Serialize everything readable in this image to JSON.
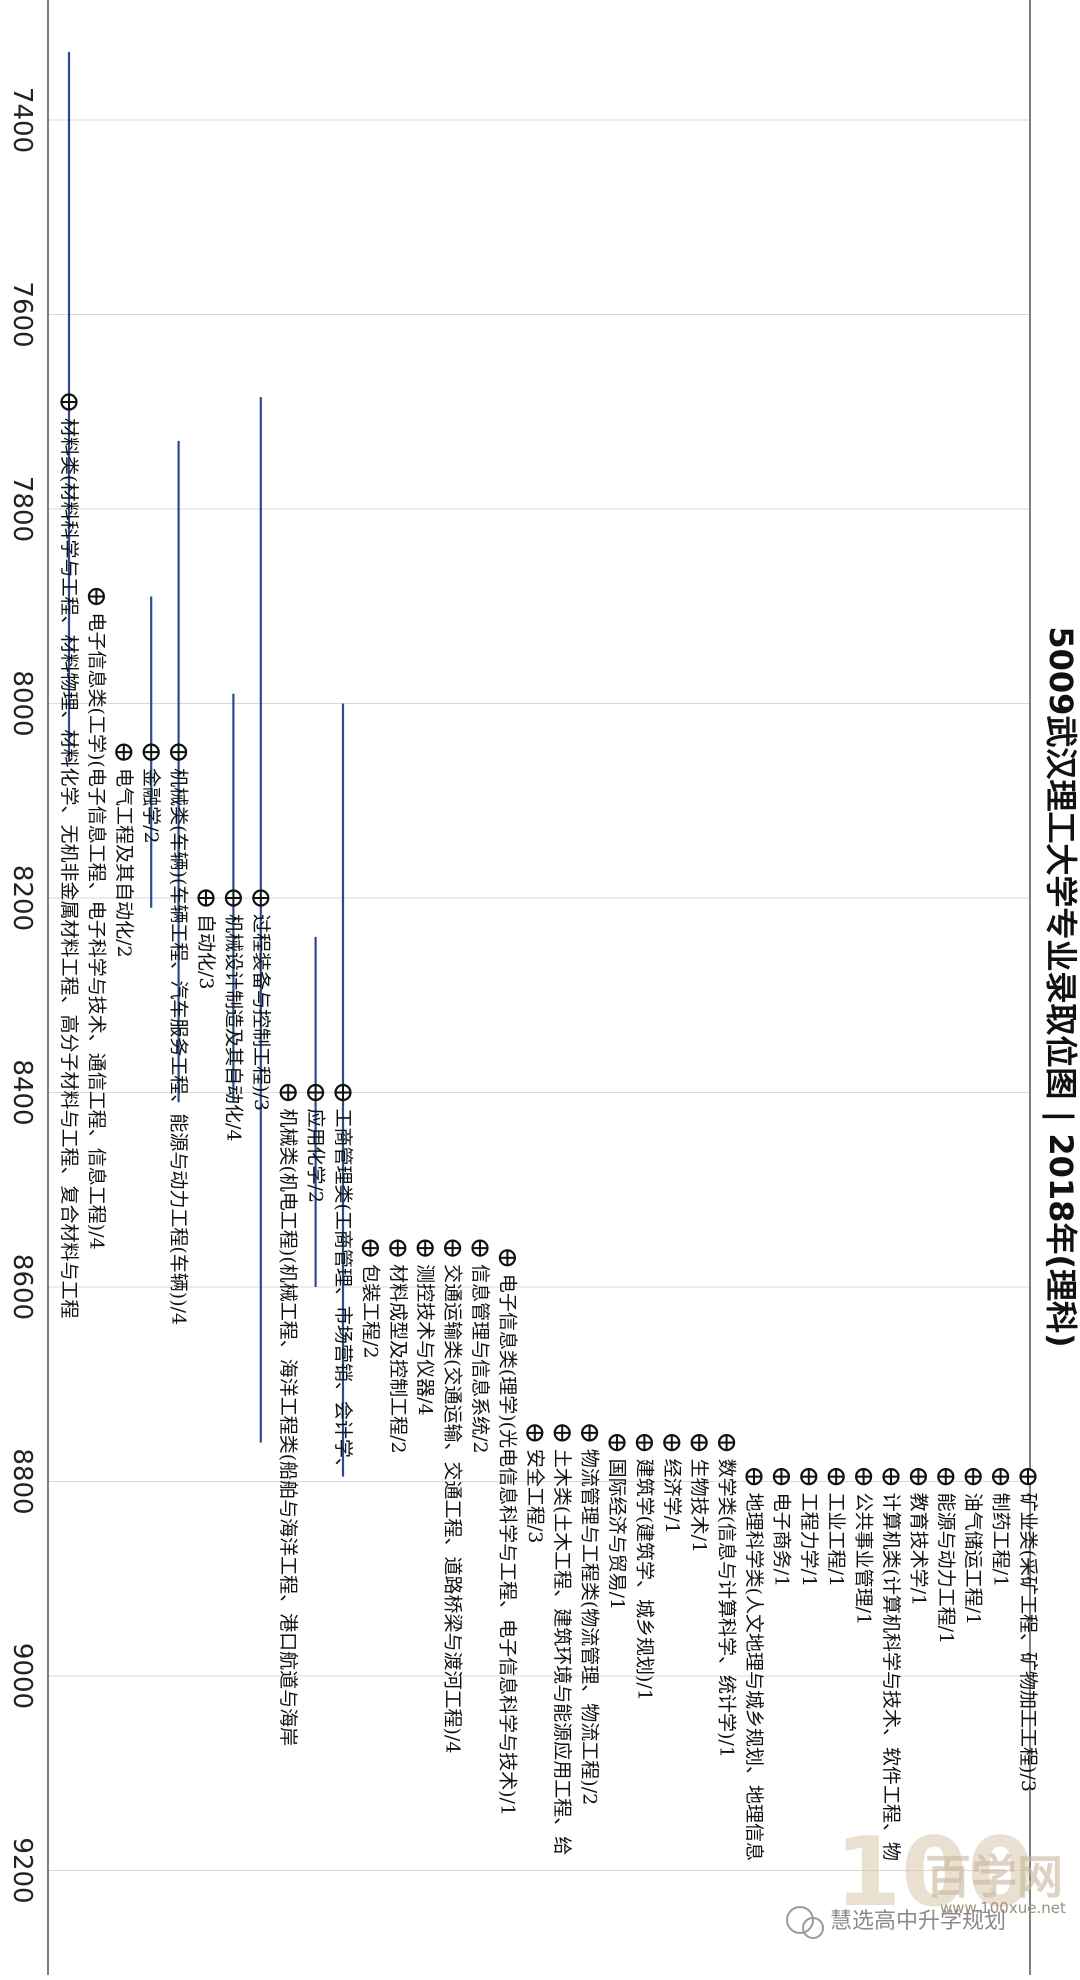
{
  "chart_data": {
    "type": "scatter",
    "title": "5009武汉理工大学专业录取位图 | 2018年(理科)",
    "ylim": [
      7240,
      9300
    ],
    "ticks": [
      7400,
      7600,
      7800,
      8000,
      8200,
      8400,
      8600,
      8800,
      9000,
      9200
    ],
    "grid": true,
    "series": [
      {
        "x": 1,
        "rank": 7690,
        "range": [
          7330,
          8060
        ],
        "label": "材料类(材料科学与工程、材料物理、材料化学、无机非金属材料工程、高分子材料与工程、复合材料与工程"
      },
      {
        "x": 2,
        "rank": 7890,
        "range": null,
        "label": "电子信息类(工学)(电子信息工程、电子科学与技术、通信工程、信息工程)/4"
      },
      {
        "x": 3,
        "rank": 8050,
        "range": null,
        "label": "电气工程及其自动化/2"
      },
      {
        "x": 4,
        "rank": 8050,
        "range": [
          7890,
          8210
        ],
        "label": "金融学/2"
      },
      {
        "x": 5,
        "rank": 8050,
        "range": [
          7730,
          8410
        ],
        "label": "机械类(车辆)(车辆工程、汽车服务工程、能源与动力工程(车辆))/4"
      },
      {
        "x": 6,
        "rank": 8200,
        "range": null,
        "label": "自动化/3"
      },
      {
        "x": 7,
        "rank": 8200,
        "range": [
          7990,
          8410
        ],
        "label": "机械设计制造及其自动化/4"
      },
      {
        "x": 8,
        "rank": 8200,
        "range": [
          7685,
          8760
        ],
        "label": "过程装备与控制工程)/3"
      },
      {
        "x": 9,
        "rank": 8400,
        "range": null,
        "label": "机械类(机电工程)(机械工程、海洋工程类(船舶与海洋工程、港口航道与海岸"
      },
      {
        "x": 10,
        "rank": 8400,
        "range": [
          8240,
          8600
        ],
        "label": "应用化学/2"
      },
      {
        "x": 11,
        "rank": 8400,
        "range": [
          8000,
          8795
        ],
        "label": "工商管理类(工商管理、市场营销、会计学、"
      },
      {
        "x": 12,
        "rank": 8560,
        "range": null,
        "label": "包装工程/2"
      },
      {
        "x": 13,
        "rank": 8560,
        "range": null,
        "label": "材料成型及控制工程/2"
      },
      {
        "x": 14,
        "rank": 8560,
        "range": null,
        "label": "测控技术与仪器/4"
      },
      {
        "x": 15,
        "rank": 8560,
        "range": null,
        "label": "交通运输类(交通运输、交通工程、道路桥梁与渡河工程)/4"
      },
      {
        "x": 16,
        "rank": 8560,
        "range": null,
        "label": "信息管理与信息系统/2"
      },
      {
        "x": 17,
        "rank": 8570,
        "range": null,
        "label": "电子信息类(理学)(光电信息科学与工程、电子信息科学与技术)/1"
      },
      {
        "x": 18,
        "rank": 8750,
        "range": null,
        "label": "安全工程/3"
      },
      {
        "x": 19,
        "rank": 8750,
        "range": null,
        "label": "土木类(土木工程、建筑环境与能源应用工程、给"
      },
      {
        "x": 20,
        "rank": 8750,
        "range": null,
        "label": "物流管理与工程类(物流管理、物流工程)/2"
      },
      {
        "x": 21,
        "rank": 8760,
        "range": null,
        "label": "国际经济与贸易/1"
      },
      {
        "x": 22,
        "rank": 8760,
        "range": null,
        "label": "建筑学(建筑学、城乡规划)/1"
      },
      {
        "x": 23,
        "rank": 8760,
        "range": null,
        "label": "经济学/1"
      },
      {
        "x": 24,
        "rank": 8760,
        "range": null,
        "label": "生物技术/1"
      },
      {
        "x": 25,
        "rank": 8760,
        "range": null,
        "label": "数学类(信息与计算科学、统计学)/1"
      },
      {
        "x": 26,
        "rank": 8795,
        "range": null,
        "label": "地理科学类(人文地理与城乡规划、地理信息"
      },
      {
        "x": 27,
        "rank": 8795,
        "range": null,
        "label": "电子商务/1"
      },
      {
        "x": 28,
        "rank": 8795,
        "range": null,
        "label": "工程力学/1"
      },
      {
        "x": 29,
        "rank": 8795,
        "range": null,
        "label": "工业工程/1"
      },
      {
        "x": 30,
        "rank": 8795,
        "range": null,
        "label": "公共事业管理/1"
      },
      {
        "x": 31,
        "rank": 8795,
        "range": null,
        "label": "计算机类(计算机科学与技术、软件工程、物"
      },
      {
        "x": 32,
        "rank": 8795,
        "range": null,
        "label": "教育技术学/1"
      },
      {
        "x": 33,
        "rank": 8795,
        "range": null,
        "label": "能源与动力工程/1"
      },
      {
        "x": 34,
        "rank": 8795,
        "range": null,
        "label": "油气储运工程/1"
      },
      {
        "x": 35,
        "rank": 8795,
        "range": null,
        "label": "制药工程/1"
      },
      {
        "x": 36,
        "rank": 8795,
        "range": null,
        "label": "矿业类(采矿工程、矿物加工工程)/3"
      }
    ]
  },
  "watermark": {
    "wechat": "慧选高中升学规划",
    "brand_num": "100",
    "brand_cn": "百学网",
    "url": "www.100xue.net"
  },
  "colors": {
    "bar": "#2b4a8f",
    "grid": "#d9d9d9",
    "marker": "#111111"
  }
}
